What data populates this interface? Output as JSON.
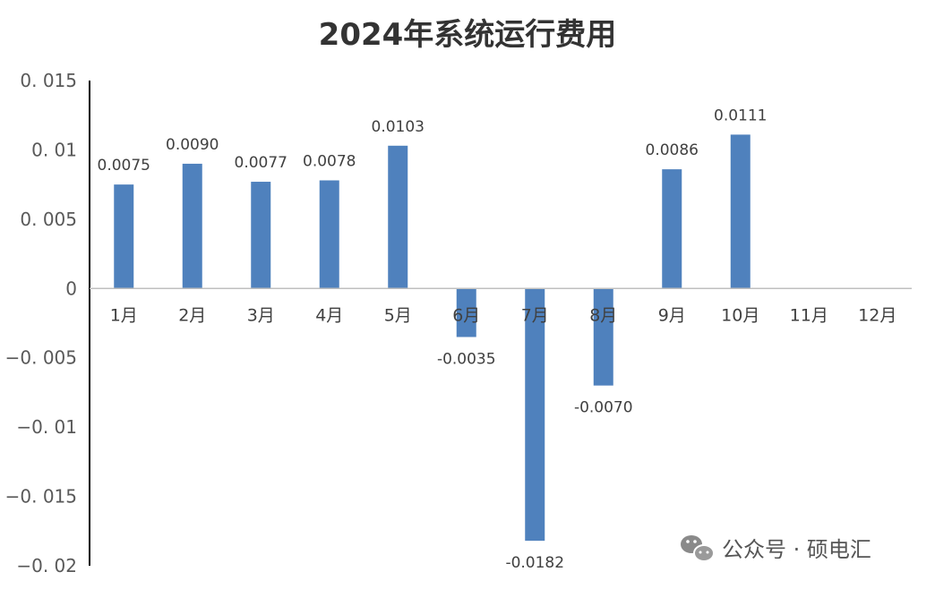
{
  "chart_data": {
    "type": "bar",
    "title": "2024年系统运行费用",
    "categories": [
      "1月",
      "2月",
      "3月",
      "4月",
      "5月",
      "6月",
      "7月",
      "8月",
      "9月",
      "10月",
      "11月",
      "12月"
    ],
    "values": [
      0.0075,
      0.009,
      0.0077,
      0.0078,
      0.0103,
      -0.0035,
      -0.0182,
      -0.007,
      0.0086,
      0.0111,
      null,
      null
    ],
    "data_labels": [
      "0.0075",
      "0.0090",
      "0.0077",
      "0.0078",
      "0.0103",
      "-0.0035",
      "-0.0182",
      "-0.0070",
      "0.0086",
      "0.0111",
      "",
      ""
    ],
    "y_ticks": [
      0.015,
      0.01,
      0.005,
      0,
      -0.005,
      -0.01,
      -0.015,
      -0.02
    ],
    "y_tick_labels": [
      "0. 015",
      "0. 01",
      "0. 005",
      "0",
      "−0. 005",
      "−0. 01",
      "−0. 015",
      "−0. 02"
    ],
    "ylim": [
      -0.02,
      0.015
    ],
    "xlabel": "",
    "ylabel": "",
    "grid": false,
    "legend": "none",
    "bar_color": "#4F81BD"
  },
  "watermark": {
    "text": "公众号 · 硕电汇",
    "icon": "wechat-icon"
  }
}
